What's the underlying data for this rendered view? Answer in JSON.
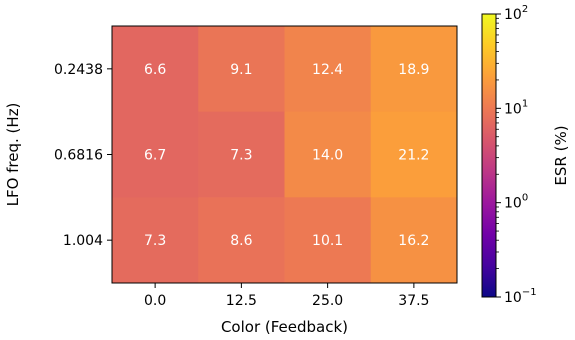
{
  "chart_data": {
    "type": "heatmap",
    "title": "",
    "xlabel": "Color (Feedback)",
    "ylabel": "LFO freq. (Hz)",
    "x_categories": [
      "0.0",
      "12.5",
      "25.0",
      "37.5"
    ],
    "y_categories": [
      "0.2438",
      "0.6816",
      "1.004"
    ],
    "values": [
      [
        6.6,
        9.1,
        12.4,
        18.9
      ],
      [
        6.7,
        7.3,
        14.0,
        21.2
      ],
      [
        7.3,
        8.6,
        10.1,
        16.2
      ]
    ],
    "cell_labels": [
      [
        "6.6",
        "9.1",
        "12.4",
        "18.9"
      ],
      [
        "6.7",
        "7.3",
        "14.0",
        "21.2"
      ],
      [
        "7.3",
        "8.6",
        "10.1",
        "16.2"
      ]
    ],
    "colorbar": {
      "label": "ESR (%)",
      "scale": "log",
      "range": [
        0.1,
        100
      ],
      "colormap": "plasma",
      "ticks": [
        {
          "value": 0.1,
          "base": "10",
          "exp": "−1"
        },
        {
          "value": 1,
          "base": "10",
          "exp": "0"
        },
        {
          "value": 10,
          "base": "10",
          "exp": "1"
        },
        {
          "value": 100,
          "base": "10",
          "exp": "2"
        }
      ]
    }
  }
}
